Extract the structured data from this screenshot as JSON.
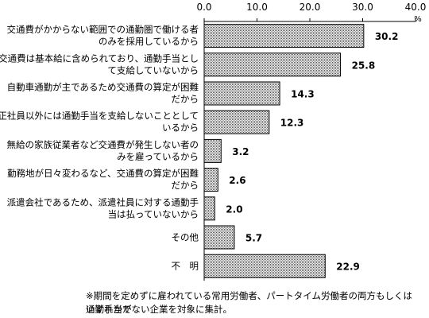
{
  "chart_data": {
    "type": "bar",
    "orientation": "horizontal",
    "unit": "%",
    "xlim": [
      0,
      40
    ],
    "ticks": [
      "0.0",
      "10.0",
      "20.0",
      "30.0",
      "40.0"
    ],
    "categories": [
      [
        "交通費がかからない範囲での通勤圏で働ける者",
        "のみを採用しているから"
      ],
      [
        "交通費は基本給に含められており、通勤手当とし",
        "て支給していないから"
      ],
      [
        "自動車通勤が主であるため交通費の算定が困難",
        "だから"
      ],
      [
        "正社員以外には通勤手当を支給しないこととして",
        "いるから"
      ],
      [
        "無給の家族従業者など交通費が発生しない者の",
        "みを雇っているから"
      ],
      [
        "勤務地が日々変わるなど、交通費の算定が困難",
        "だから"
      ],
      [
        "派遣会社であるため、派遣社員に対する通勤手",
        "当は払っていないから"
      ],
      [
        "その他"
      ],
      [
        "不　明"
      ]
    ],
    "values": [
      30.2,
      25.8,
      14.3,
      12.3,
      3.2,
      2.6,
      2.0,
      5.7,
      22.9
    ],
    "value_labels": [
      "30.2",
      "25.8",
      "14.3",
      "12.3",
      "3.2",
      "2.6",
      "2.0",
      "5.7",
      "22.9"
    ],
    "legend": "none",
    "grid": false
  },
  "note": {
    "line1": "※期間を定めずに雇われている常用労働者、パートタイム労働者の両方もしくはいずれかで",
    "line2": "通勤手当がない企業を対象に集計。"
  }
}
